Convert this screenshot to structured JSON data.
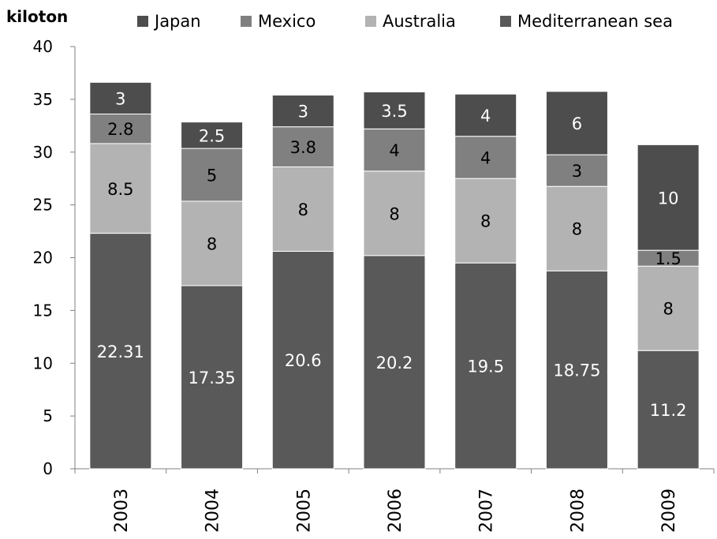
{
  "chart_data": {
    "type": "bar",
    "stacked": true,
    "ylabel": "kiloton",
    "ylim": [
      0,
      40
    ],
    "yticks": [
      "0",
      "5",
      "10",
      "15",
      "20",
      "25",
      "30",
      "35",
      "40"
    ],
    "categories": [
      "2003",
      "2004",
      "2005",
      "2006",
      "2007",
      "2008",
      "2009"
    ],
    "series": [
      {
        "name": "Mediterranean sea",
        "color": "#595959",
        "values": [
          22.31,
          17.35,
          20.6,
          20.2,
          19.5,
          18.75,
          11.2
        ],
        "labels": [
          "22.31",
          "17.35",
          "20.6",
          "20.2",
          "19.5",
          "18.75",
          "11.2"
        ]
      },
      {
        "name": "Australia",
        "color": "#b3b3b3",
        "values": [
          8.5,
          8,
          8,
          8,
          8,
          8,
          8
        ],
        "labels": [
          "8.5",
          "8",
          "8",
          "8",
          "8",
          "8",
          "8"
        ]
      },
      {
        "name": "Mexico",
        "color": "#808080",
        "values": [
          2.8,
          5,
          3.8,
          4,
          4,
          3,
          1.5
        ],
        "labels": [
          "2.8",
          "5",
          "3.8",
          "4",
          "4",
          "3",
          "1.5"
        ]
      },
      {
        "name": "Japan",
        "color": "#4d4d4d",
        "values": [
          3,
          2.5,
          3,
          3.5,
          4,
          6,
          10
        ],
        "labels": [
          "3",
          "2.5",
          "3",
          "3.5",
          "4",
          "6",
          "10"
        ]
      }
    ],
    "legend": {
      "placement": "top",
      "entries": [
        {
          "name": "Japan",
          "color": "#4d4d4d"
        },
        {
          "name": "Mexico",
          "color": "#808080"
        },
        {
          "name": "Australia",
          "color": "#b3b3b3"
        },
        {
          "name": "Mediterranean sea",
          "color": "#595959"
        }
      ]
    },
    "grid": false
  }
}
